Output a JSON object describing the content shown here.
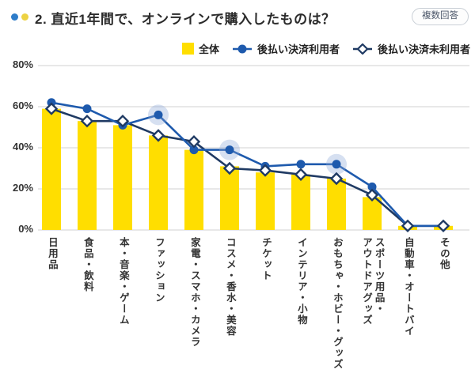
{
  "header": {
    "title": "2. 直近1年間で、オンラインで購入したものは？",
    "badge": "複数回答",
    "accent_dot_colors": [
      "#2e7cc9",
      "#edd243"
    ]
  },
  "colors": {
    "bar_yellow": "#ffde00",
    "line_blue": "#1e5aad",
    "line_navy": "#1f3a63",
    "diamond_fill": "#ffffff",
    "halo_blue": "#8aa7d8",
    "grid": "#d9d9d9",
    "axis_text": "#333333",
    "title_text": "#2b2b2b",
    "badge_border": "#c9cfd6",
    "badge_text": "#4a5568"
  },
  "chart_data": {
    "type": "bar",
    "subtype": "bar+line combo",
    "title": "2. 直近1年間で、オンラインで購入したものは？",
    "note": "複数回答",
    "categories": [
      "日用品",
      "食品・飲料",
      "本・音楽・ゲーム",
      "ファッション",
      "家電・スマホ・カメラ",
      "コスメ・香水・美容",
      "チケット",
      "インテリア・小物",
      "おもちゃ・ホビー・グッズ",
      "スポーツ用品・\nアウトドアグッズ",
      "自動車・オートバイ",
      "その他"
    ],
    "series": [
      {
        "name": "全体",
        "type": "bar",
        "color": "#ffde00",
        "values": [
          59,
          53,
          51,
          46,
          39,
          31,
          28,
          27,
          25,
          16,
          2,
          2
        ]
      },
      {
        "name": "後払い決済利用者",
        "type": "line",
        "marker": "circle",
        "color": "#1e5aad",
        "values": [
          62,
          59,
          51,
          56,
          39,
          39,
          31,
          32,
          32,
          21,
          2,
          2
        ],
        "highlighted_indices": [
          3,
          5,
          8
        ]
      },
      {
        "name": "後払い決済未利用者",
        "type": "line",
        "marker": "diamond",
        "color": "#1f3a63",
        "values": [
          59,
          53,
          53,
          46,
          43,
          30,
          29,
          27,
          25,
          17,
          2,
          2
        ]
      }
    ],
    "ylabel": "",
    "xlabel": "",
    "yticks": [
      0,
      20,
      40,
      60,
      80
    ],
    "ytick_labels": [
      "0%",
      "20%",
      "40%",
      "60%",
      "80%"
    ],
    "ylim": [
      0,
      80
    ],
    "grid": true,
    "legend_position": "top-right"
  }
}
